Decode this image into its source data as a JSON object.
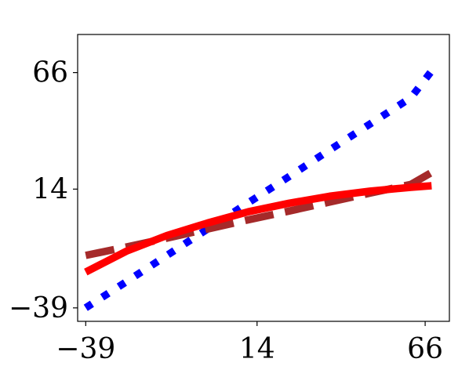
{
  "chart_data": {
    "type": "line",
    "title": "",
    "xlabel": "",
    "ylabel": "",
    "xlim": [
      -41.5,
      73.5
    ],
    "ylim": [
      -45,
      83
    ],
    "x_ticks": [
      -39,
      14,
      66
    ],
    "y_ticks": [
      -39,
      14,
      66
    ],
    "x_tick_labels": [
      "−39",
      "14",
      "66"
    ],
    "y_tick_labels": [
      "−39",
      "14",
      "66"
    ],
    "grid": false,
    "legend": "none",
    "series": [
      {
        "style": "dotted",
        "color": "#0000ff",
        "x": [
          -39,
          -26.4,
          -13.9,
          -1.3,
          11.3,
          23.9,
          36.4,
          49,
          61.6,
          68
        ],
        "y": [
          -39,
          -27.3,
          -15.6,
          -3.8,
          7.9,
          19.6,
          31.4,
          43.1,
          54.8,
          66.7
        ]
      },
      {
        "style": "dashed",
        "color": "#a52a2a",
        "x": [
          -39,
          -26.4,
          -13.9,
          -1.3,
          11.3,
          23.9,
          36.4,
          49,
          61.6,
          68
        ],
        "y": [
          -15.6,
          -11.8,
          -7.9,
          -3.8,
          0.3,
          4.2,
          8.2,
          12.2,
          16.1,
          21.4
        ]
      },
      {
        "style": "solid",
        "color": "#ff0000",
        "x": [
          -39,
          -26.4,
          -13.9,
          -1.3,
          11.3,
          23.9,
          36.4,
          49,
          61.6,
          68
        ],
        "y": [
          -23,
          -13.7,
          -6.7,
          -1.1,
          3.9,
          7.7,
          10.8,
          13.1,
          14.8,
          15.5
        ]
      }
    ]
  }
}
